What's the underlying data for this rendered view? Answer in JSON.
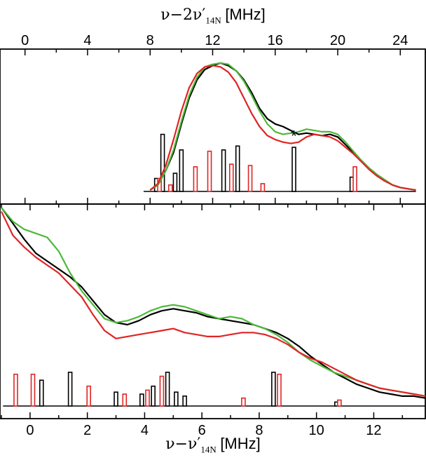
{
  "chart_data": [
    {
      "type": "line",
      "panel": "top",
      "xlabel_parts": {
        "lead": "ν−2ν′",
        "sub": "14N",
        "unit": "[MHz]"
      },
      "xaxis_position": "top",
      "xlim": [
        -1.6,
        25.6
      ],
      "xticks": [
        0,
        4,
        8,
        12,
        16,
        20,
        24
      ],
      "ylim": [
        0,
        1
      ],
      "yticks_shown": false,
      "annotation": {
        "text": "*",
        "x": 17.2,
        "y": 0.43
      },
      "series": [
        {
          "color": "#000000",
          "x": [
            8.0,
            8.5,
            9.0,
            9.5,
            10.0,
            10.5,
            11.0,
            11.5,
            12.0,
            12.5,
            13.0,
            13.5,
            14.0,
            14.5,
            15.0,
            15.5,
            16.0,
            16.5,
            17.0,
            17.5,
            18.0,
            18.5,
            19.0,
            19.5,
            20.0,
            20.5,
            21.0,
            21.5,
            22.0,
            22.5,
            23.0,
            23.5,
            24.0,
            24.5,
            25.0
          ],
          "y": [
            0.01,
            0.05,
            0.16,
            0.3,
            0.52,
            0.72,
            0.86,
            0.94,
            0.97,
            0.99,
            0.97,
            0.93,
            0.86,
            0.76,
            0.64,
            0.56,
            0.52,
            0.5,
            0.47,
            0.44,
            0.45,
            0.44,
            0.43,
            0.44,
            0.42,
            0.36,
            0.3,
            0.24,
            0.18,
            0.13,
            0.09,
            0.05,
            0.03,
            0.02,
            0.01
          ]
        },
        {
          "color": "#4db83a",
          "x": [
            8.0,
            8.5,
            9.0,
            9.5,
            10.0,
            10.5,
            11.0,
            11.5,
            12.0,
            12.5,
            13.0,
            13.5,
            14.0,
            14.5,
            15.0,
            15.5,
            16.0,
            16.5,
            17.0,
            17.5,
            18.0,
            18.5,
            19.0,
            19.5,
            20.0,
            20.5,
            21.0,
            21.5,
            22.0,
            22.5,
            23.0,
            23.5,
            24.0,
            24.5,
            25.0
          ],
          "y": [
            0.01,
            0.05,
            0.16,
            0.32,
            0.54,
            0.74,
            0.88,
            0.96,
            0.98,
            0.99,
            0.98,
            0.93,
            0.85,
            0.74,
            0.62,
            0.52,
            0.46,
            0.44,
            0.45,
            0.46,
            0.48,
            0.47,
            0.46,
            0.46,
            0.44,
            0.38,
            0.31,
            0.24,
            0.18,
            0.13,
            0.09,
            0.05,
            0.03,
            0.02,
            0.01
          ]
        },
        {
          "color": "#e02424",
          "x": [
            8.0,
            8.5,
            9.0,
            9.5,
            10.0,
            10.5,
            11.0,
            11.5,
            12.0,
            12.5,
            13.0,
            13.5,
            14.0,
            14.5,
            15.0,
            15.5,
            16.0,
            16.5,
            17.0,
            17.5,
            18.0,
            18.5,
            19.0,
            19.5,
            20.0,
            20.5,
            21.0,
            21.5,
            22.0,
            22.5,
            23.0,
            23.5,
            24.0,
            24.5,
            25.0
          ],
          "y": [
            0.01,
            0.06,
            0.2,
            0.4,
            0.62,
            0.8,
            0.91,
            0.96,
            0.97,
            0.96,
            0.92,
            0.84,
            0.72,
            0.6,
            0.5,
            0.43,
            0.4,
            0.38,
            0.37,
            0.38,
            0.42,
            0.44,
            0.43,
            0.42,
            0.39,
            0.34,
            0.29,
            0.23,
            0.17,
            0.12,
            0.08,
            0.05,
            0.03,
            0.02,
            0.01
          ]
        }
      ],
      "sticks": [
        {
          "color": "#000000",
          "x": [
            8.4,
            8.8,
            9.6,
            10.0,
            12.7,
            13.6,
            17.2,
            20.9
          ],
          "h": [
            0.1,
            0.44,
            0.14,
            0.32,
            0.32,
            0.35,
            0.34,
            0.11
          ]
        },
        {
          "color": "#e02424",
          "x": [
            8.6,
            9.3,
            10.9,
            11.8,
            13.2,
            14.4,
            15.2,
            21.1
          ],
          "h": [
            0.1,
            0.05,
            0.19,
            0.31,
            0.21,
            0.2,
            0.06,
            0.19
          ]
        }
      ]
    },
    {
      "type": "line",
      "panel": "bottom",
      "xlabel_parts": {
        "lead": "ν−ν′",
        "sub": "14N",
        "unit": "[MHz]"
      },
      "xaxis_position": "bottom",
      "xlim": [
        -1.05,
        13.8
      ],
      "xticks": [
        0,
        2,
        4,
        6,
        8,
        10,
        12
      ],
      "ylim": [
        0,
        1
      ],
      "yticks_shown": false,
      "series": [
        {
          "color": "#000000",
          "x": [
            -1.0,
            -0.6,
            -0.2,
            0.2,
            0.6,
            1.0,
            1.4,
            1.8,
            2.2,
            2.6,
            3.0,
            3.4,
            3.8,
            4.2,
            4.6,
            5.0,
            5.4,
            5.8,
            6.2,
            6.6,
            7.0,
            7.4,
            7.8,
            8.2,
            8.6,
            9.0,
            9.4,
            9.8,
            10.2,
            10.6,
            11.0,
            11.4,
            11.8,
            12.2,
            12.6,
            13.0,
            13.4,
            13.8
          ],
          "y": [
            1.0,
            0.92,
            0.84,
            0.77,
            0.73,
            0.69,
            0.65,
            0.6,
            0.53,
            0.46,
            0.42,
            0.41,
            0.43,
            0.46,
            0.48,
            0.49,
            0.48,
            0.47,
            0.45,
            0.44,
            0.43,
            0.42,
            0.41,
            0.39,
            0.37,
            0.34,
            0.3,
            0.25,
            0.21,
            0.17,
            0.14,
            0.11,
            0.09,
            0.07,
            0.06,
            0.05,
            0.05,
            0.04
          ]
        },
        {
          "color": "#4db83a",
          "x": [
            -1.0,
            -0.6,
            -0.2,
            0.2,
            0.6,
            1.0,
            1.4,
            1.8,
            2.2,
            2.6,
            3.0,
            3.4,
            3.8,
            4.2,
            4.6,
            5.0,
            5.4,
            5.8,
            6.2,
            6.6,
            7.0,
            7.4,
            7.8,
            8.2,
            8.6,
            9.0,
            9.4,
            9.8,
            10.2,
            10.6,
            11.0,
            11.4,
            11.8,
            12.2,
            12.6,
            13.0,
            13.4,
            13.8
          ],
          "y": [
            1.0,
            0.93,
            0.89,
            0.87,
            0.85,
            0.78,
            0.67,
            0.58,
            0.51,
            0.44,
            0.42,
            0.43,
            0.45,
            0.48,
            0.5,
            0.51,
            0.5,
            0.48,
            0.46,
            0.44,
            0.45,
            0.44,
            0.41,
            0.39,
            0.36,
            0.32,
            0.27,
            0.23,
            0.2,
            0.17,
            0.15,
            0.13,
            0.11,
            0.09,
            0.08,
            0.07,
            0.06,
            0.05
          ]
        },
        {
          "color": "#e02424",
          "x": [
            -1.0,
            -0.6,
            -0.2,
            0.2,
            0.6,
            1.0,
            1.4,
            1.8,
            2.2,
            2.6,
            3.0,
            3.4,
            3.8,
            4.2,
            4.6,
            5.0,
            5.4,
            5.8,
            6.2,
            6.6,
            7.0,
            7.4,
            7.8,
            8.2,
            8.6,
            9.0,
            9.4,
            9.8,
            10.2,
            10.6,
            11.0,
            11.4,
            11.8,
            12.2,
            12.6,
            13.0,
            13.4,
            13.8
          ],
          "y": [
            0.98,
            0.86,
            0.8,
            0.75,
            0.71,
            0.67,
            0.61,
            0.55,
            0.46,
            0.38,
            0.34,
            0.35,
            0.36,
            0.37,
            0.38,
            0.39,
            0.37,
            0.36,
            0.35,
            0.35,
            0.36,
            0.37,
            0.37,
            0.36,
            0.34,
            0.31,
            0.27,
            0.24,
            0.22,
            0.19,
            0.16,
            0.13,
            0.11,
            0.09,
            0.08,
            0.07,
            0.06,
            0.05
          ]
        }
      ],
      "sticks": [
        {
          "color": "#000000",
          "x": [
            0.4,
            1.4,
            3.0,
            3.9,
            4.3,
            4.8,
            5.1,
            5.4,
            8.5,
            10.7
          ],
          "h": [
            0.13,
            0.17,
            0.07,
            0.06,
            0.1,
            0.17,
            0.07,
            0.05,
            0.17,
            0.02
          ]
        },
        {
          "color": "#e02424",
          "x": [
            -0.5,
            0.1,
            2.05,
            3.3,
            4.1,
            4.6,
            7.45,
            8.7,
            10.8
          ],
          "h": [
            0.16,
            0.16,
            0.1,
            0.06,
            0.08,
            0.15,
            0.04,
            0.16,
            0.03
          ]
        }
      ]
    }
  ]
}
